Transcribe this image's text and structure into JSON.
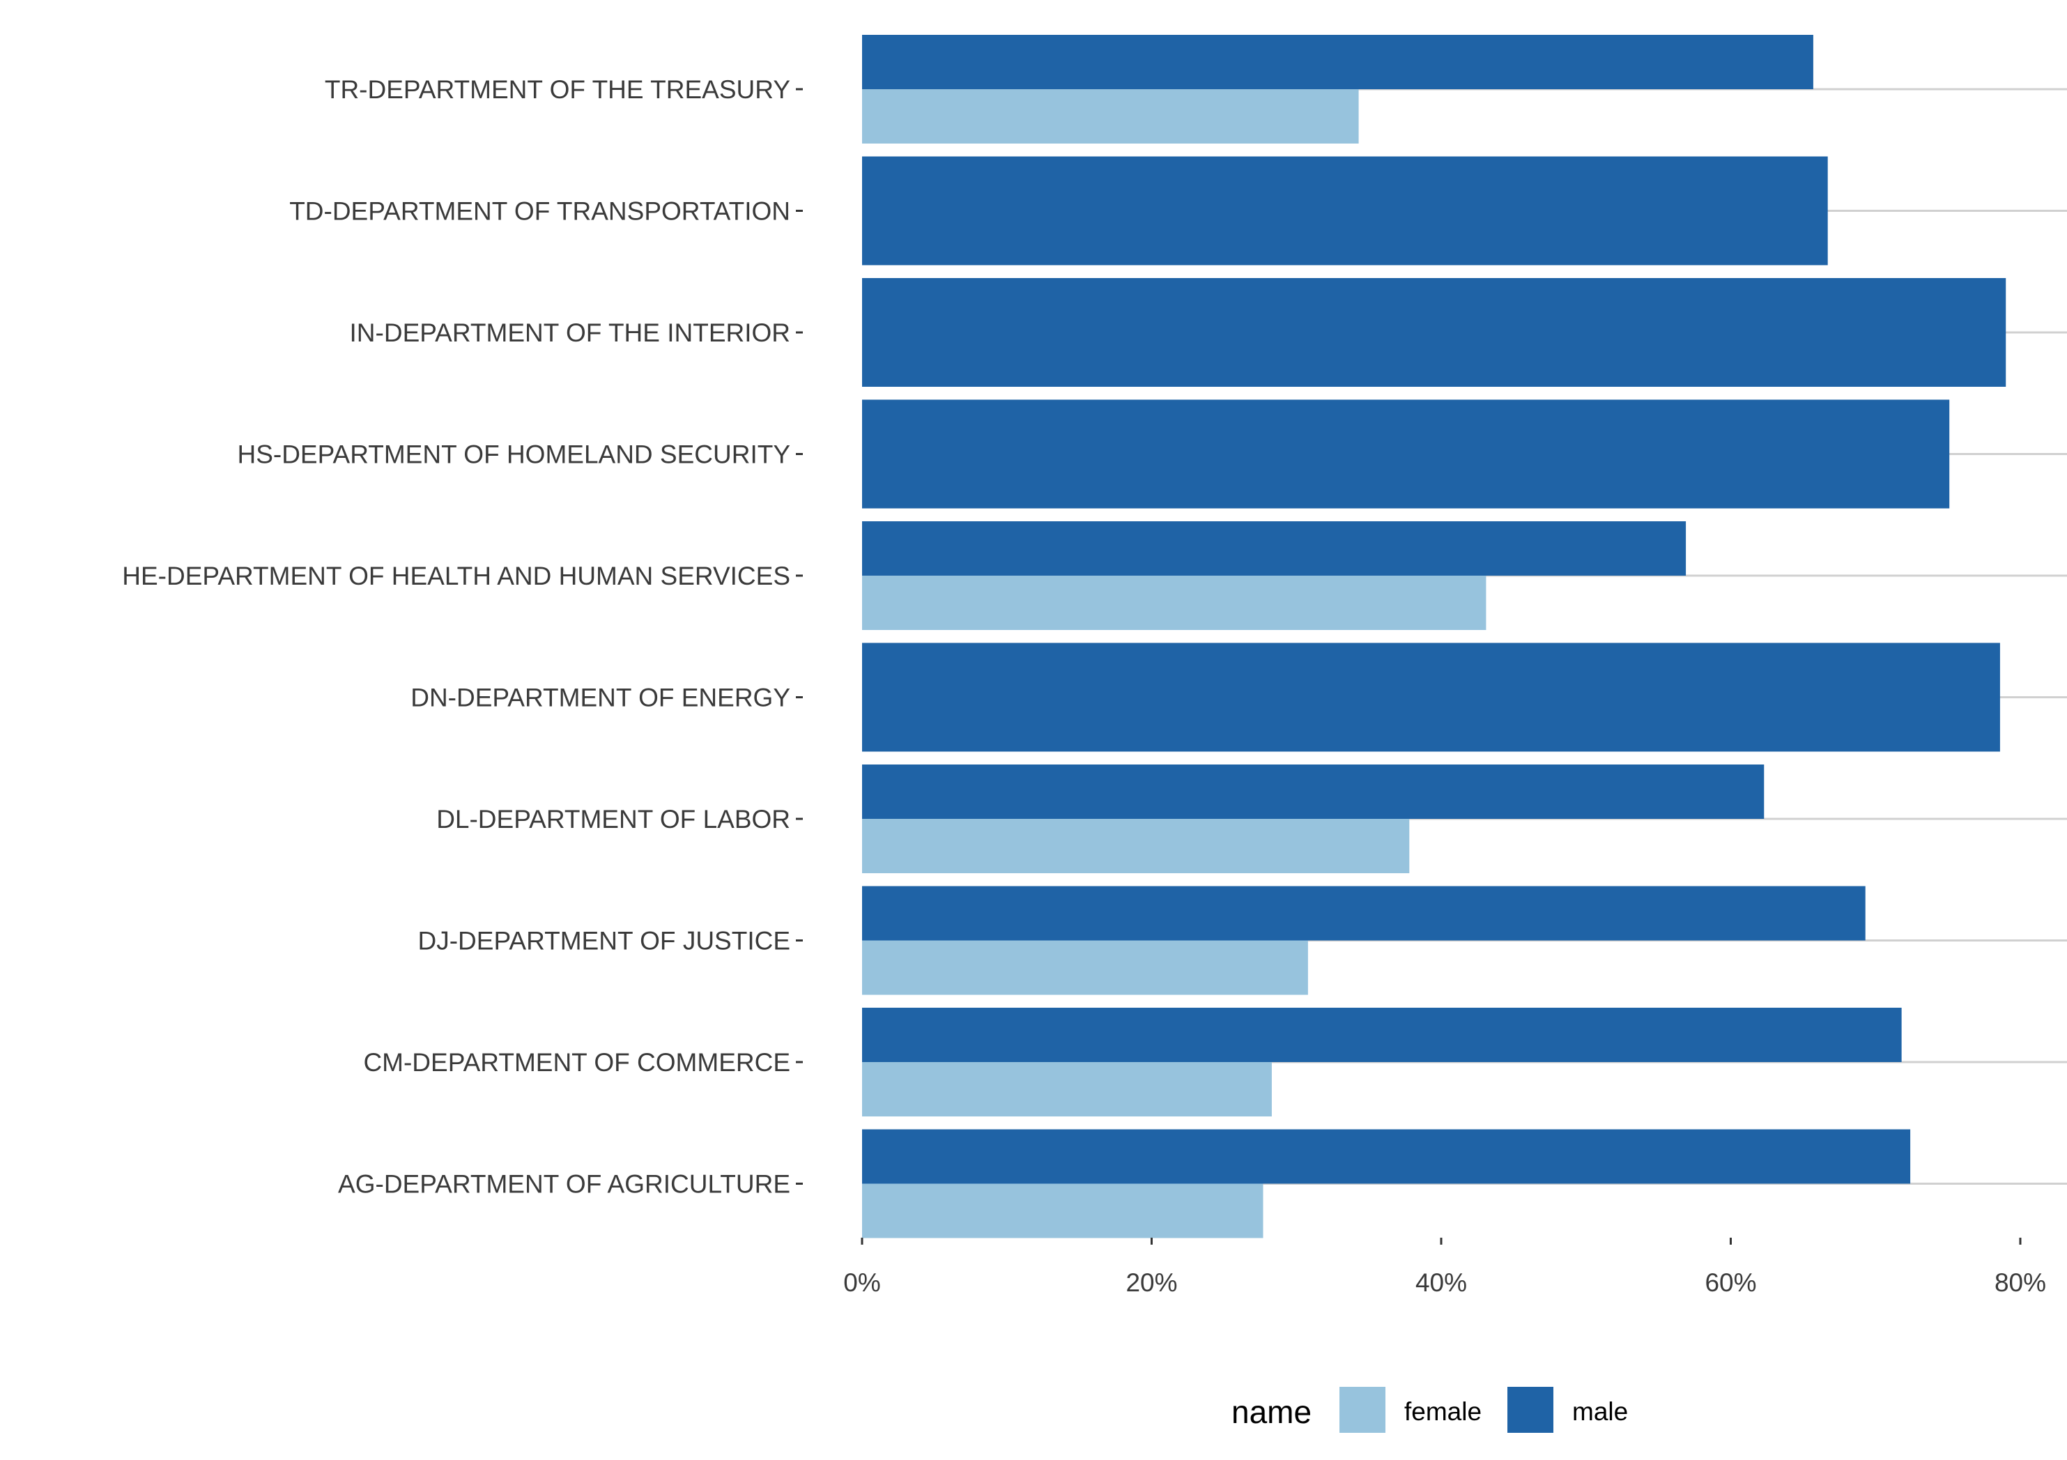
{
  "chart_data": {
    "type": "bar",
    "orientation": "horizontal",
    "title": "",
    "xlabel": "",
    "ylabel": "",
    "categories": [
      "TR-DEPARTMENT OF THE TREASURY",
      "TD-DEPARTMENT OF TRANSPORTATION",
      "IN-DEPARTMENT OF THE INTERIOR",
      "HS-DEPARTMENT OF HOMELAND SECURITY",
      "HE-DEPARTMENT OF HEALTH AND HUMAN SERVICES",
      "DN-DEPARTMENT OF ENERGY",
      "DL-DEPARTMENT OF LABOR",
      "DJ-DEPARTMENT OF JUSTICE",
      "CM-DEPARTMENT OF COMMERCE",
      "AG-DEPARTMENT OF AGRICULTURE"
    ],
    "series": [
      {
        "name": "female",
        "color": "#97c3dd",
        "values": [
          0.343,
          null,
          null,
          null,
          0.431,
          null,
          0.378,
          0.308,
          0.283,
          0.277
        ]
      },
      {
        "name": "male",
        "color": "#1f63a6",
        "values": [
          0.657,
          0.667,
          0.79,
          0.751,
          0.569,
          0.786,
          0.623,
          0.693,
          0.718,
          0.724
        ]
      }
    ],
    "xlim": [
      0,
      0.8
    ],
    "xticks": [
      0,
      0.2,
      0.4,
      0.6,
      0.8
    ],
    "xtick_labels": [
      "0%",
      "20%",
      "40%",
      "60%",
      "80%"
    ],
    "grid": true,
    "legend": {
      "title": "name",
      "position": "bottom"
    }
  }
}
